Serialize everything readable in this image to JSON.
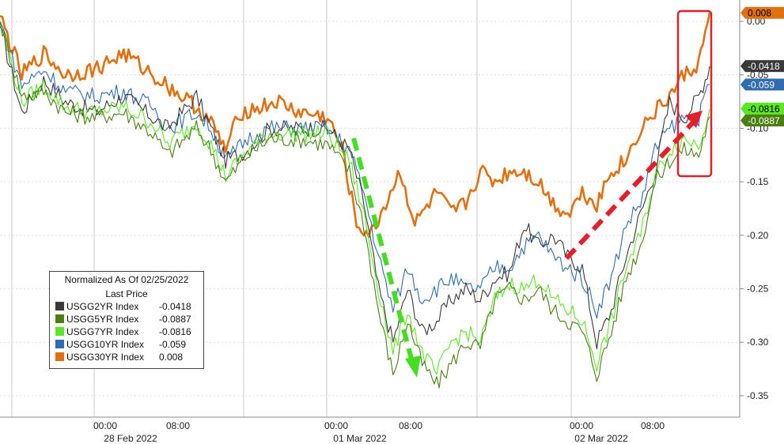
{
  "chart_data": {
    "type": "line",
    "legend": {
      "title_line1": "Normalized As Of 02/25/2022",
      "title_line2": "Last Price",
      "placement": "bottom-left"
    },
    "y_axis": {
      "side": "right",
      "ylim": [
        -0.37,
        0.02
      ],
      "ticks": [
        "0.00",
        "-0.05",
        "-0.10",
        "-0.15",
        "-0.20",
        "-0.25",
        "-0.30",
        "-0.35"
      ],
      "tick_values": [
        0,
        -0.05,
        -0.1,
        -0.15,
        -0.2,
        -0.25,
        -0.3,
        -0.35
      ]
    },
    "x_axis": {
      "time_labels": [
        "00:00",
        "08:00",
        "00:00",
        "08:00",
        "00:00",
        "08:00"
      ],
      "date_labels": [
        "28 Feb 2022",
        "01 Mar 2022",
        "02 Mar 2022"
      ]
    },
    "grid": true,
    "series": [
      {
        "name": "USGG2YR Index",
        "value_label": "-0.0418",
        "color": "#3a3a3a",
        "last": -0.0418,
        "points": [
          [
            0,
            -0.005
          ],
          [
            3,
            -0.085
          ],
          [
            6,
            -0.055
          ],
          [
            9,
            -0.075
          ],
          [
            13,
            -0.085
          ],
          [
            17,
            -0.07
          ],
          [
            21,
            -0.09
          ],
          [
            23,
            -0.1
          ],
          [
            27,
            -0.07
          ],
          [
            29,
            -0.1
          ],
          [
            31,
            -0.13
          ],
          [
            34,
            -0.12
          ],
          [
            37,
            -0.1
          ],
          [
            41,
            -0.1
          ],
          [
            45,
            -0.1
          ],
          [
            48,
            -0.12
          ],
          [
            50,
            -0.17
          ],
          [
            52,
            -0.25
          ],
          [
            54,
            -0.3
          ],
          [
            56,
            -0.25
          ],
          [
            58,
            -0.29
          ],
          [
            60,
            -0.28
          ],
          [
            62,
            -0.26
          ],
          [
            64,
            -0.25
          ],
          [
            66,
            -0.26
          ],
          [
            68,
            -0.24
          ],
          [
            70,
            -0.235
          ],
          [
            72,
            -0.19
          ],
          [
            74,
            -0.21
          ],
          [
            76,
            -0.2
          ],
          [
            78,
            -0.22
          ],
          [
            80,
            -0.23
          ],
          [
            82,
            -0.3
          ],
          [
            84,
            -0.27
          ],
          [
            86,
            -0.22
          ],
          [
            88,
            -0.18
          ],
          [
            90,
            -0.14
          ],
          [
            92,
            -0.075
          ],
          [
            94,
            -0.09
          ],
          [
            96,
            -0.07
          ],
          [
            97.5,
            -0.042
          ]
        ]
      },
      {
        "name": "USGG5YR Index",
        "value_label": "-0.0887",
        "color": "#4a7d12",
        "last": -0.0887,
        "points": [
          [
            0,
            0.0
          ],
          [
            3,
            -0.07
          ],
          [
            6,
            -0.065
          ],
          [
            9,
            -0.085
          ],
          [
            13,
            -0.09
          ],
          [
            17,
            -0.085
          ],
          [
            21,
            -0.105
          ],
          [
            23,
            -0.125
          ],
          [
            27,
            -0.1
          ],
          [
            29,
            -0.12
          ],
          [
            31,
            -0.15
          ],
          [
            34,
            -0.125
          ],
          [
            37,
            -0.11
          ],
          [
            41,
            -0.11
          ],
          [
            45,
            -0.115
          ],
          [
            48,
            -0.14
          ],
          [
            50,
            -0.19
          ],
          [
            52,
            -0.27
          ],
          [
            54,
            -0.33
          ],
          [
            56,
            -0.28
          ],
          [
            58,
            -0.32
          ],
          [
            60,
            -0.34
          ],
          [
            62,
            -0.32
          ],
          [
            64,
            -0.3
          ],
          [
            66,
            -0.305
          ],
          [
            68,
            -0.26
          ],
          [
            70,
            -0.25
          ],
          [
            72,
            -0.26
          ],
          [
            74,
            -0.25
          ],
          [
            76,
            -0.27
          ],
          [
            78,
            -0.28
          ],
          [
            80,
            -0.29
          ],
          [
            82,
            -0.33
          ],
          [
            84,
            -0.29
          ],
          [
            86,
            -0.24
          ],
          [
            88,
            -0.21
          ],
          [
            90,
            -0.15
          ],
          [
            92,
            -0.13
          ],
          [
            94,
            -0.12
          ],
          [
            96,
            -0.125
          ],
          [
            97.5,
            -0.089
          ]
        ]
      },
      {
        "name": "USGG7YR Index",
        "value_label": "-0.0816",
        "color": "#5de626",
        "last": -0.0816,
        "points": [
          [
            0,
            0.0
          ],
          [
            3,
            -0.075
          ],
          [
            6,
            -0.06
          ],
          [
            9,
            -0.08
          ],
          [
            13,
            -0.085
          ],
          [
            17,
            -0.08
          ],
          [
            21,
            -0.095
          ],
          [
            23,
            -0.115
          ],
          [
            27,
            -0.095
          ],
          [
            29,
            -0.115
          ],
          [
            31,
            -0.145
          ],
          [
            34,
            -0.12
          ],
          [
            37,
            -0.105
          ],
          [
            41,
            -0.105
          ],
          [
            45,
            -0.105
          ],
          [
            48,
            -0.13
          ],
          [
            50,
            -0.18
          ],
          [
            52,
            -0.25
          ],
          [
            54,
            -0.31
          ],
          [
            56,
            -0.27
          ],
          [
            58,
            -0.31
          ],
          [
            60,
            -0.33
          ],
          [
            62,
            -0.3
          ],
          [
            64,
            -0.29
          ],
          [
            66,
            -0.3
          ],
          [
            68,
            -0.26
          ],
          [
            70,
            -0.245
          ],
          [
            72,
            -0.25
          ],
          [
            74,
            -0.24
          ],
          [
            76,
            -0.26
          ],
          [
            78,
            -0.27
          ],
          [
            80,
            -0.28
          ],
          [
            82,
            -0.32
          ],
          [
            84,
            -0.28
          ],
          [
            86,
            -0.23
          ],
          [
            88,
            -0.2
          ],
          [
            90,
            -0.145
          ],
          [
            92,
            -0.12
          ],
          [
            94,
            -0.11
          ],
          [
            96,
            -0.115
          ],
          [
            97.5,
            -0.082
          ]
        ]
      },
      {
        "name": "USGG10YR Index",
        "value_label": "-0.059",
        "color": "#2f6cb0",
        "last": -0.059,
        "points": [
          [
            0,
            0.0
          ],
          [
            3,
            -0.06
          ],
          [
            6,
            -0.045
          ],
          [
            9,
            -0.065
          ],
          [
            13,
            -0.07
          ],
          [
            17,
            -0.065
          ],
          [
            21,
            -0.08
          ],
          [
            23,
            -0.1
          ],
          [
            27,
            -0.085
          ],
          [
            29,
            -0.1
          ],
          [
            31,
            -0.13
          ],
          [
            34,
            -0.11
          ],
          [
            37,
            -0.1
          ],
          [
            41,
            -0.1
          ],
          [
            45,
            -0.1
          ],
          [
            48,
            -0.12
          ],
          [
            50,
            -0.16
          ],
          [
            52,
            -0.22
          ],
          [
            54,
            -0.27
          ],
          [
            56,
            -0.23
          ],
          [
            58,
            -0.26
          ],
          [
            60,
            -0.25
          ],
          [
            62,
            -0.24
          ],
          [
            64,
            -0.25
          ],
          [
            66,
            -0.25
          ],
          [
            68,
            -0.23
          ],
          [
            70,
            -0.23
          ],
          [
            72,
            -0.21
          ],
          [
            74,
            -0.2
          ],
          [
            76,
            -0.22
          ],
          [
            78,
            -0.23
          ],
          [
            80,
            -0.24
          ],
          [
            82,
            -0.27
          ],
          [
            84,
            -0.24
          ],
          [
            86,
            -0.19
          ],
          [
            88,
            -0.17
          ],
          [
            90,
            -0.12
          ],
          [
            92,
            -0.1
          ],
          [
            94,
            -0.09
          ],
          [
            96,
            -0.09
          ],
          [
            97.5,
            -0.059
          ]
        ]
      },
      {
        "name": "USGG30YR Index",
        "value_label": "0.008",
        "color": "#e07010",
        "last": 0.008,
        "points": [
          [
            0,
            0.005
          ],
          [
            3,
            -0.05
          ],
          [
            6,
            -0.03
          ],
          [
            9,
            -0.05
          ],
          [
            13,
            -0.045
          ],
          [
            17,
            -0.03
          ],
          [
            21,
            -0.05
          ],
          [
            23,
            -0.06
          ],
          [
            27,
            -0.08
          ],
          [
            29,
            -0.095
          ],
          [
            31,
            -0.12
          ],
          [
            33,
            -0.085
          ],
          [
            36,
            -0.08
          ],
          [
            38,
            -0.075
          ],
          [
            41,
            -0.085
          ],
          [
            45,
            -0.09
          ],
          [
            47,
            -0.12
          ],
          [
            49,
            -0.19
          ],
          [
            51,
            -0.2
          ],
          [
            53,
            -0.17
          ],
          [
            55,
            -0.14
          ],
          [
            57,
            -0.19
          ],
          [
            58,
            -0.18
          ],
          [
            60,
            -0.16
          ],
          [
            62,
            -0.18
          ],
          [
            64,
            -0.17
          ],
          [
            66,
            -0.14
          ],
          [
            68,
            -0.15
          ],
          [
            70,
            -0.14
          ],
          [
            72,
            -0.14
          ],
          [
            74,
            -0.15
          ],
          [
            76,
            -0.17
          ],
          [
            78,
            -0.18
          ],
          [
            80,
            -0.16
          ],
          [
            82,
            -0.17
          ],
          [
            84,
            -0.14
          ],
          [
            86,
            -0.13
          ],
          [
            88,
            -0.1
          ],
          [
            90,
            -0.085
          ],
          [
            92,
            -0.07
          ],
          [
            94,
            -0.05
          ],
          [
            96,
            -0.04
          ],
          [
            97.5,
            0.008
          ]
        ]
      }
    ]
  },
  "badges": [
    {
      "text": "0.008",
      "bg": "#e07010",
      "fg": "#000000",
      "value": 0.008
    },
    {
      "text": "-0.0418",
      "bg": "#3a3a3a",
      "fg": "#ffffff",
      "value": -0.0418
    },
    {
      "text": "-0.059",
      "bg": "#2f6cb0",
      "fg": "#ffffff",
      "value": -0.059
    },
    {
      "text": "-0.0816",
      "bg": "#5de626",
      "fg": "#000000",
      "value": -0.0816
    },
    {
      "text": "-0.0887",
      "bg": "#4a7d12",
      "fg": "#ffffff",
      "value": -0.0887
    }
  ],
  "annotations": {
    "down_arrow_color": "#44dd22",
    "up_arrow_color": "#e0202a",
    "highlight_box_color": "#e0202a"
  }
}
